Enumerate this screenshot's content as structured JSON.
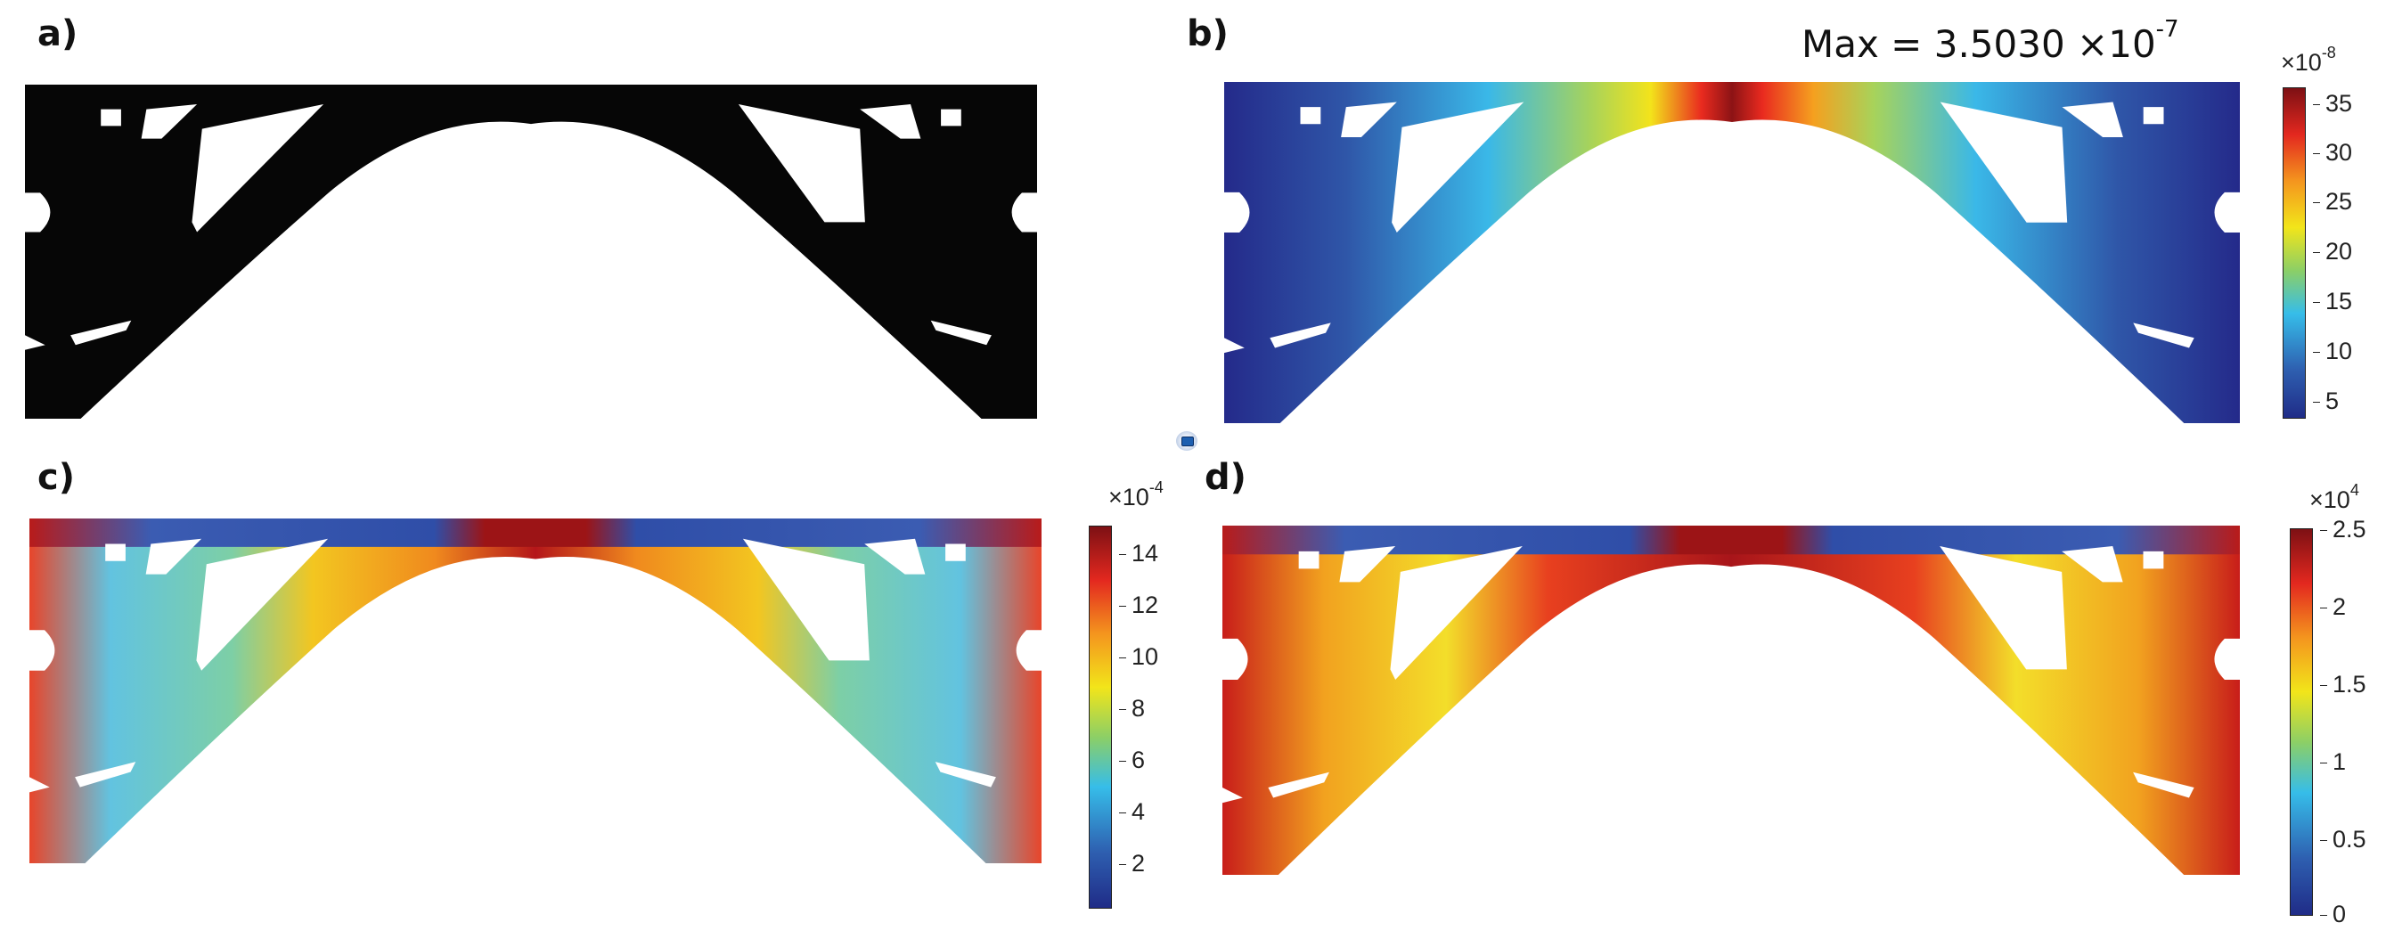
{
  "panels": {
    "a": {
      "label": "a)"
    },
    "b": {
      "label": "b)",
      "max_text": "Max = 3.5030 ×10",
      "max_exp": "-7",
      "colorbar": {
        "multiplier": "×10",
        "exp": "-8",
        "ticks": [
          "35",
          "30",
          "25",
          "20",
          "15",
          "10",
          "5"
        ]
      }
    },
    "c": {
      "label": "c)",
      "colorbar": {
        "multiplier": "×10",
        "exp": "-4",
        "ticks": [
          "14",
          "12",
          "10",
          "8",
          "6",
          "4",
          "2"
        ]
      }
    },
    "d": {
      "label": "d)",
      "colorbar": {
        "multiplier": "×10",
        "exp": "4",
        "ticks": [
          "2.5",
          "2",
          "1.5",
          "1",
          "0.5",
          "0"
        ]
      }
    }
  },
  "colors": {
    "jet": [
      "#2b2f8e",
      "#2f5fae",
      "#35b6e6",
      "#8fcf63",
      "#f0e31a",
      "#f49a1f",
      "#e52a20",
      "#8b1214"
    ],
    "structure_black": "#060606"
  },
  "icons": {
    "center": "app-icon"
  }
}
